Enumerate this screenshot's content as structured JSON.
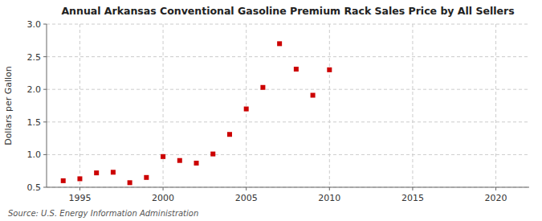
{
  "chart_data": {
    "type": "scatter",
    "title": "Annual Arkansas Conventional Gasoline Premium Rack Sales Price by All Sellers",
    "y_label": "Dollars per Gallon",
    "annotations": [
      "Source: U.S. Energy Information Administration"
    ],
    "x": [
      1994,
      1995,
      1996,
      1997,
      1998,
      1999,
      2000,
      2001,
      2002,
      2003,
      2004,
      2005,
      2006,
      2007,
      2008,
      2009,
      2010
    ],
    "values": [
      0.6,
      0.63,
      0.72,
      0.73,
      0.57,
      0.65,
      0.97,
      0.91,
      0.87,
      1.01,
      1.31,
      1.7,
      2.03,
      2.7,
      2.31,
      1.91,
      2.3
    ],
    "color": "#cc0000",
    "marker": "square",
    "xlim": [
      1993,
      2022
    ],
    "ylim": [
      0.5,
      3.0
    ],
    "xticks": [
      1995,
      2000,
      2005,
      2010,
      2015,
      2020
    ],
    "yticks": [
      0.5,
      {
        "value": 1.0,
        "label": "1.0"
      },
      1.5,
      {
        "value": 2.0,
        "label": "2.0"
      },
      2.5,
      {
        "value": 3.0,
        "label": "3.0"
      }
    ],
    "grid": true
  }
}
